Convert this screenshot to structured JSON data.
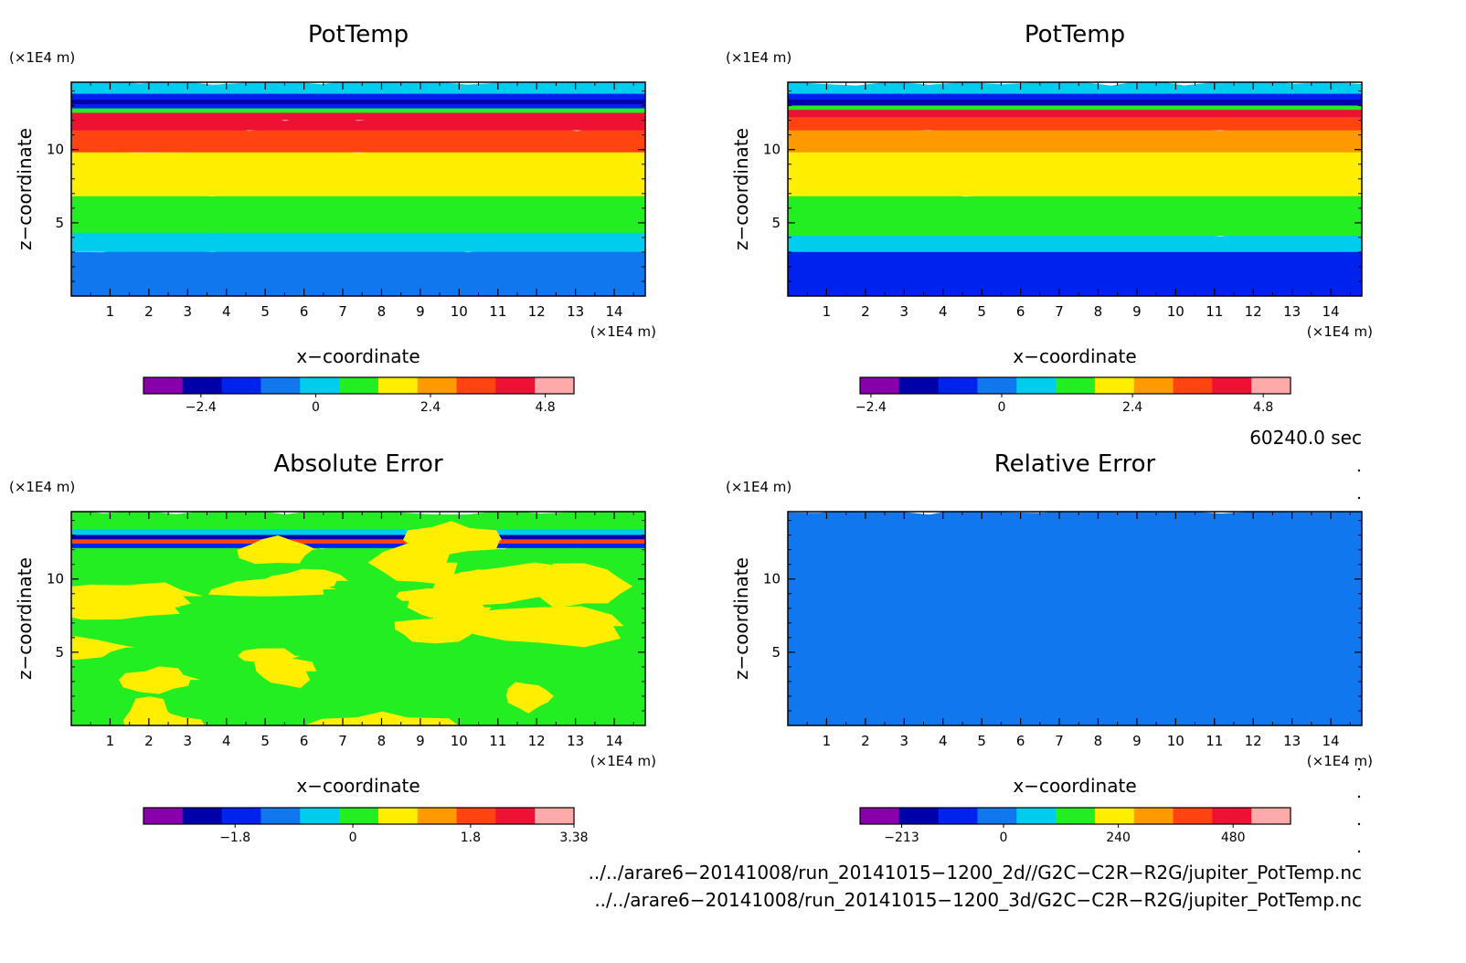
{
  "chart_data": [
    {
      "type": "heatmap",
      "title": "PotTemp",
      "xlabel": "x−coordinate",
      "ylabel": "z−coordinate",
      "x_unit": "(×1E4 m)",
      "y_unit": "(×1E4 m)",
      "xlim": [
        0,
        14.8
      ],
      "ylim": [
        0,
        14.6
      ],
      "x_ticks": [
        "1",
        "2",
        "3",
        "4",
        "5",
        "6",
        "7",
        "8",
        "9",
        "10",
        "11",
        "12",
        "13",
        "14"
      ],
      "y_ticks": [
        "5",
        "10"
      ],
      "colorbar": {
        "min": -3.6,
        "max": 5.4,
        "colors": [
          "#8800aa",
          "#0000aa",
          "#0022ee",
          "#1177ee",
          "#00ccee",
          "#22ee22",
          "#ffee00",
          "#ff9900",
          "#ff4411",
          "#ee1133",
          "#ffaaaa"
        ],
        "tick_values": [
          -2.4,
          0,
          2.4,
          4.8
        ],
        "tick_labels": [
          "−2.4",
          "0",
          "2.4",
          "4.8"
        ]
      },
      "bands": [
        {
          "z": [
            0,
            3.2
          ],
          "value": -0.6
        },
        {
          "z": [
            3.2,
            4.5
          ],
          "value": 0.3
        },
        {
          "z": [
            4.5,
            7.0
          ],
          "value": 1.0
        },
        {
          "z": [
            7.0,
            10.0
          ],
          "value": 2.0
        },
        {
          "z": [
            10.0,
            11.5
          ],
          "value": 3.0
        },
        {
          "z": [
            11.5,
            12.2
          ],
          "value": 3.8
        },
        {
          "z": [
            12.2,
            12.7
          ],
          "value": 4.5
        },
        {
          "z": [
            12.7,
            13.0
          ],
          "value": 1.0
        },
        {
          "z": [
            13.0,
            13.3
          ],
          "value": -1.2
        },
        {
          "z": [
            13.3,
            13.6
          ],
          "value": -2.2
        },
        {
          "z": [
            13.6,
            14.0
          ],
          "value": -1.2
        },
        {
          "z": [
            14.0,
            14.6
          ],
          "value": 0.3
        }
      ]
    },
    {
      "type": "heatmap",
      "title": "PotTemp",
      "xlabel": "x−coordinate",
      "ylabel": "z−coordinate",
      "x_unit": "(×1E4 m)",
      "y_unit": "(×1E4 m)",
      "xlim": [
        0,
        14.8
      ],
      "ylim": [
        0,
        14.6
      ],
      "x_ticks": [
        "1",
        "2",
        "3",
        "4",
        "5",
        "6",
        "7",
        "8",
        "9",
        "10",
        "11",
        "12",
        "13",
        "14"
      ],
      "y_ticks": [
        "5",
        "10"
      ],
      "colorbar": {
        "min": -2.6,
        "max": 5.3,
        "colors": [
          "#8800aa",
          "#0000aa",
          "#0022ee",
          "#1177ee",
          "#00ccee",
          "#22ee22",
          "#ffee00",
          "#ff9900",
          "#ff4411",
          "#ee1133",
          "#ffaaaa"
        ],
        "tick_values": [
          -2.4,
          0,
          2.4,
          4.8
        ],
        "tick_labels": [
          "−2.4",
          "0",
          "2.4",
          "4.8"
        ]
      },
      "bands": [
        {
          "z": [
            0,
            3.2
          ],
          "value": -0.6
        },
        {
          "z": [
            3.2,
            4.3
          ],
          "value": 0.3
        },
        {
          "z": [
            4.3,
            7.0
          ],
          "value": 1.0
        },
        {
          "z": [
            7.0,
            10.0
          ],
          "value": 2.0
        },
        {
          "z": [
            10.0,
            11.5
          ],
          "value": 3.0
        },
        {
          "z": [
            11.5,
            12.4
          ],
          "value": 3.8
        },
        {
          "z": [
            12.4,
            12.9
          ],
          "value": 4.5
        },
        {
          "z": [
            12.9,
            13.2
          ],
          "value": 1.0
        },
        {
          "z": [
            13.2,
            13.6
          ],
          "value": -1.8
        },
        {
          "z": [
            13.6,
            14.0
          ],
          "value": -0.6
        },
        {
          "z": [
            14.0,
            14.6
          ],
          "value": 0.3
        }
      ]
    },
    {
      "type": "heatmap",
      "title": "Absolute Error",
      "xlabel": "x−coordinate",
      "ylabel": "z−coordinate",
      "x_unit": "(×1E4 m)",
      "y_unit": "(×1E4 m)",
      "xlim": [
        0,
        14.8
      ],
      "ylim": [
        0,
        14.6
      ],
      "x_ticks": [
        "1",
        "2",
        "3",
        "4",
        "5",
        "6",
        "7",
        "8",
        "9",
        "10",
        "11",
        "12",
        "13",
        "14"
      ],
      "y_ticks": [
        "5",
        "10"
      ],
      "colorbar": {
        "min": -3.2,
        "max": 3.38,
        "colors": [
          "#8800aa",
          "#0000aa",
          "#0022ee",
          "#1177ee",
          "#00ccee",
          "#22ee22",
          "#ffee00",
          "#ff9900",
          "#ff4411",
          "#ee1133",
          "#ffaaaa"
        ],
        "tick_values": [
          -1.8,
          0,
          1.8,
          3.38
        ],
        "tick_labels": [
          "−1.8",
          "0",
          "1.8",
          "3.38"
        ]
      },
      "bands": [
        {
          "z": [
            0,
            12.3
          ],
          "value": 0.1
        },
        {
          "z": [
            12.3,
            12.6
          ],
          "value": -1.5
        },
        {
          "z": [
            12.6,
            12.9
          ],
          "value": 1.8
        },
        {
          "z": [
            12.9,
            13.2
          ],
          "value": -2.4
        },
        {
          "z": [
            13.2,
            13.6
          ],
          "value": -0.8
        },
        {
          "z": [
            13.6,
            14.6
          ],
          "value": 0.1
        }
      ],
      "patches_value": 0.8
    },
    {
      "type": "heatmap",
      "title": "Relative Error",
      "xlabel": "x−coordinate",
      "ylabel": "z−coordinate",
      "x_unit": "(×1E4 m)",
      "y_unit": "(×1E4 m)",
      "xlim": [
        0,
        14.8
      ],
      "ylim": [
        0,
        14.6
      ],
      "x_ticks": [
        "1",
        "2",
        "3",
        "4",
        "5",
        "6",
        "7",
        "8",
        "9",
        "10",
        "11",
        "12",
        "13",
        "14"
      ],
      "y_ticks": [
        "5",
        "10"
      ],
      "colorbar": {
        "min": -300,
        "max": 600,
        "colors": [
          "#8800aa",
          "#0000aa",
          "#0022ee",
          "#1177ee",
          "#00ccee",
          "#22ee22",
          "#ffee00",
          "#ff9900",
          "#ff4411",
          "#ee1133",
          "#ffaaaa"
        ],
        "tick_values": [
          -213,
          0,
          240,
          480
        ],
        "tick_labels": [
          "−213",
          "0",
          "240",
          "480"
        ]
      },
      "bands": [
        {
          "z": [
            0,
            14.6
          ],
          "value": 20
        }
      ],
      "patches_value": -40
    }
  ],
  "time_label": "60240.0 sec",
  "file_paths": [
    "../../arare6−20141008/run_20141015−1200_2d//G2C−C2R−R2G/jupiter_PotTemp.nc",
    "../../arare6−20141008/run_20141015−1200_3d/G2C−C2R−R2G/jupiter_PotTemp.nc"
  ]
}
